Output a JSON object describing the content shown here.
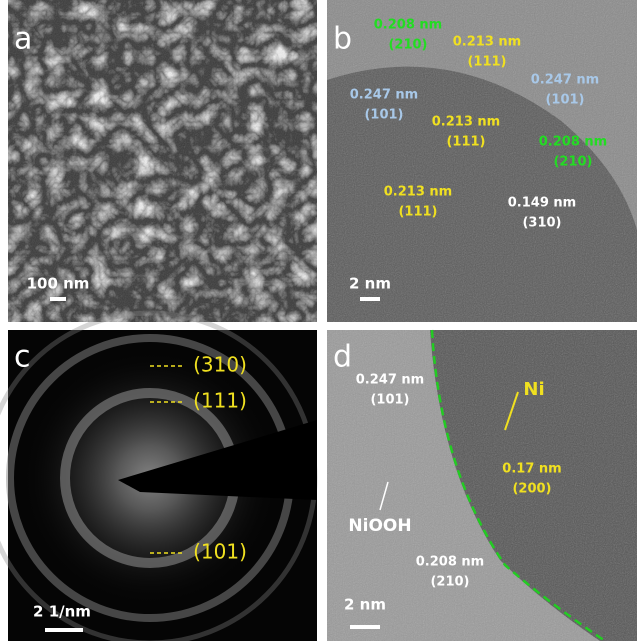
{
  "panels": [
    {
      "label": "a",
      "scale_bar": "100 nm"
    },
    {
      "label": "b",
      "scale_bar": "2 nm",
      "annotations": [
        {
          "d": "0.208 nm",
          "hkl": "(210)",
          "color": "#22dd22"
        },
        {
          "d": "0.213 nm",
          "hkl": "(111)",
          "color": "#f0e020"
        },
        {
          "d": "0.247 nm",
          "hkl": "(101)",
          "color": "#a8c8e8"
        },
        {
          "d": "0.247 nm",
          "hkl": "(101)",
          "color": "#a8c8e8"
        },
        {
          "d": "0.213 nm",
          "hkl": "(111)",
          "color": "#f0e020"
        },
        {
          "d": "0.208 nm",
          "hkl": "(210)",
          "color": "#22dd22"
        },
        {
          "d": "0.213 nm",
          "hkl": "(111)",
          "color": "#f0e020"
        },
        {
          "d": "0.149 nm",
          "hkl": "(310)",
          "color": "#ffffff"
        }
      ]
    },
    {
      "label": "c",
      "scale_bar": "2 1/nm",
      "rings": [
        "(310)",
        "(111)",
        "(101)"
      ]
    },
    {
      "label": "d",
      "scale_bar": "2 nm",
      "phase": "Ni",
      "shell": "NiOOH",
      "annotations": [
        {
          "d": "0.247 nm",
          "hkl": "(101)",
          "color": "#ffffff"
        },
        {
          "d": "0.17 nm",
          "hkl": "(200)",
          "color": "#f0e020"
        },
        {
          "d": "0.208 nm",
          "hkl": "(210)",
          "color": "#ffffff"
        }
      ]
    }
  ]
}
